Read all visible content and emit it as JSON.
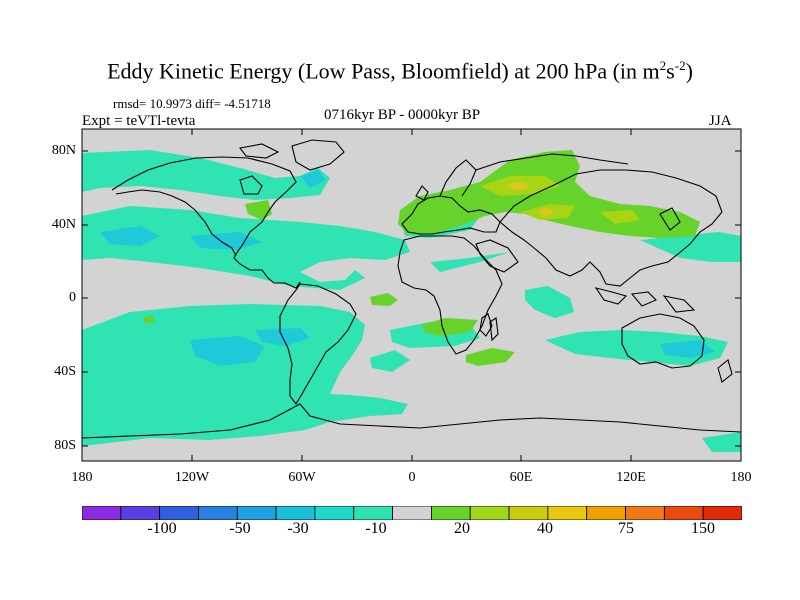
{
  "figure": {
    "title_main": "Eddy Kinetic Energy (Low Pass, Bloomfield) at 200 hPa (in m",
    "title_sup1": "2",
    "title_mid": "s",
    "title_sup2": "-2",
    "title_end": ")",
    "stats": "rmsd= 10.9973 diff= -4.51718",
    "expt": "Expt = teVTl-tevta",
    "period": "0716kyr BP - 0000kyr BP",
    "season": "JJA"
  },
  "map": {
    "lat_labels": [
      "80N",
      "40N",
      "0",
      "40S",
      "80S"
    ],
    "lon_labels": [
      "180",
      "120W",
      "60W",
      "0",
      "60E",
      "120E",
      "180"
    ],
    "colors": {
      "background": "#d3d3d3",
      "neg_light": "#2fe3b3",
      "neg_med": "#1ecad8",
      "neg_strong": "#14b3e0",
      "pos_light": "#66d22a",
      "pos_med": "#a8d414",
      "pos_strong": "#d9c81c",
      "coast": "#000000"
    }
  },
  "colorbar": {
    "colors": [
      "#8a2be2",
      "#5a3fe0",
      "#3060e0",
      "#2a80e0",
      "#20a0e0",
      "#18c0d8",
      "#20d8c8",
      "#30e0b0",
      "#d3d3d3",
      "#66d22a",
      "#a0d81c",
      "#c8cc10",
      "#e8c810",
      "#f0a000",
      "#f07818",
      "#e84a10",
      "#e02a08"
    ],
    "labels": [
      "-100",
      "-50",
      "-30",
      "-10",
      "20",
      "40",
      "75",
      "150"
    ]
  }
}
